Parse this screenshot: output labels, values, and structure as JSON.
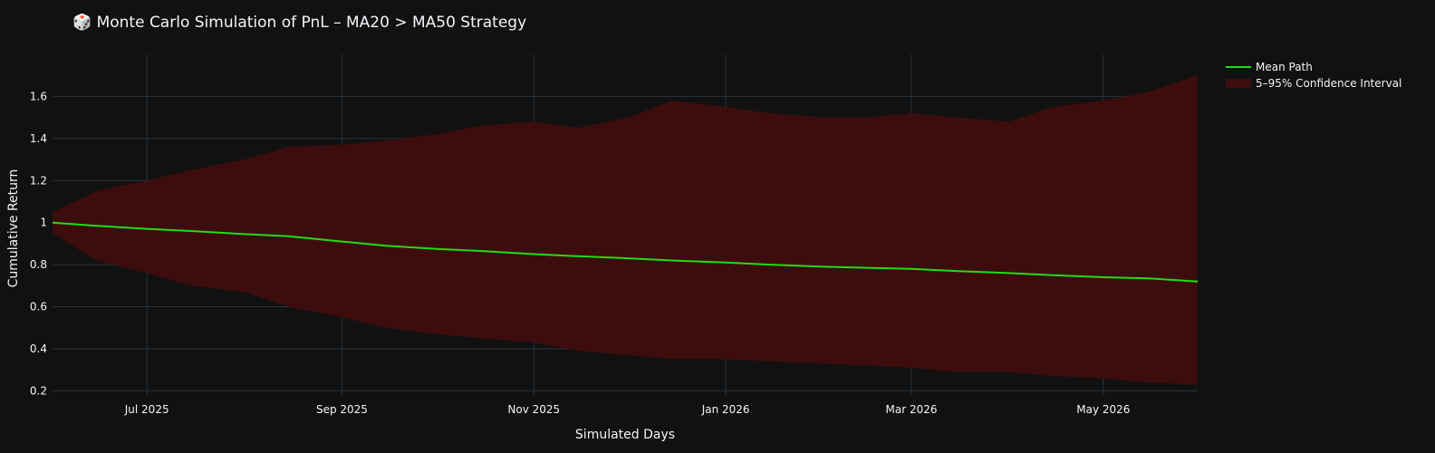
{
  "chart_data": {
    "type": "line",
    "title": "🎲 Monte Carlo Simulation of PnL – MA20 > MA50 Strategy",
    "xlabel": "Simulated Days",
    "ylabel": "Cumulative Return",
    "x_range": [
      "2025-06-01",
      "2026-05-31"
    ],
    "ylim": [
      0.18,
      1.8
    ],
    "x_ticks": [
      {
        "date": "2025-07-01",
        "label": "Jul 2025"
      },
      {
        "date": "2025-09-01",
        "label": "Sep 2025"
      },
      {
        "date": "2025-11-01",
        "label": "Nov 2025"
      },
      {
        "date": "2026-01-01",
        "label": "Jan 2026"
      },
      {
        "date": "2026-03-01",
        "label": "Mar 2026"
      },
      {
        "date": "2026-05-01",
        "label": "May 2026"
      }
    ],
    "y_ticks": [
      0.2,
      0.4,
      0.6,
      0.8,
      1,
      1.2,
      1.4,
      1.6
    ],
    "grid": true,
    "legend_position": "top-right",
    "series": [
      {
        "name": "Mean Path",
        "kind": "line",
        "color": "#22dd11",
        "x": [
          "2025-06-01",
          "2025-06-15",
          "2025-07-01",
          "2025-07-15",
          "2025-08-01",
          "2025-08-15",
          "2025-09-01",
          "2025-09-15",
          "2025-10-01",
          "2025-10-15",
          "2025-11-01",
          "2025-11-15",
          "2025-12-01",
          "2025-12-15",
          "2026-01-01",
          "2026-01-15",
          "2026-02-01",
          "2026-02-15",
          "2026-03-01",
          "2026-03-15",
          "2026-04-01",
          "2026-04-15",
          "2026-05-01",
          "2026-05-15",
          "2026-05-31"
        ],
        "values": [
          1.0,
          0.985,
          0.97,
          0.96,
          0.945,
          0.935,
          0.91,
          0.89,
          0.875,
          0.865,
          0.85,
          0.84,
          0.83,
          0.82,
          0.81,
          0.8,
          0.79,
          0.785,
          0.78,
          0.77,
          0.76,
          0.75,
          0.74,
          0.735,
          0.72
        ]
      },
      {
        "name": "5–95% Confidence Interval",
        "kind": "band",
        "color": "#3d0d0d",
        "x": [
          "2025-06-01",
          "2025-06-15",
          "2025-07-01",
          "2025-07-15",
          "2025-08-01",
          "2025-08-15",
          "2025-09-01",
          "2025-09-15",
          "2025-10-01",
          "2025-10-15",
          "2025-11-01",
          "2025-11-15",
          "2025-12-01",
          "2025-12-15",
          "2026-01-01",
          "2026-01-15",
          "2026-02-01",
          "2026-02-15",
          "2026-03-01",
          "2026-03-15",
          "2026-04-01",
          "2026-04-15",
          "2026-05-01",
          "2026-05-15",
          "2026-05-31"
        ],
        "upper": [
          1.05,
          1.15,
          1.2,
          1.25,
          1.3,
          1.36,
          1.37,
          1.39,
          1.42,
          1.46,
          1.48,
          1.45,
          1.5,
          1.58,
          1.55,
          1.52,
          1.5,
          1.5,
          1.52,
          1.5,
          1.48,
          1.55,
          1.58,
          1.62,
          1.7
        ],
        "lower": [
          0.95,
          0.82,
          0.76,
          0.7,
          0.67,
          0.6,
          0.55,
          0.5,
          0.47,
          0.45,
          0.43,
          0.39,
          0.37,
          0.35,
          0.35,
          0.34,
          0.33,
          0.32,
          0.31,
          0.29,
          0.29,
          0.27,
          0.26,
          0.24,
          0.23
        ]
      }
    ]
  }
}
